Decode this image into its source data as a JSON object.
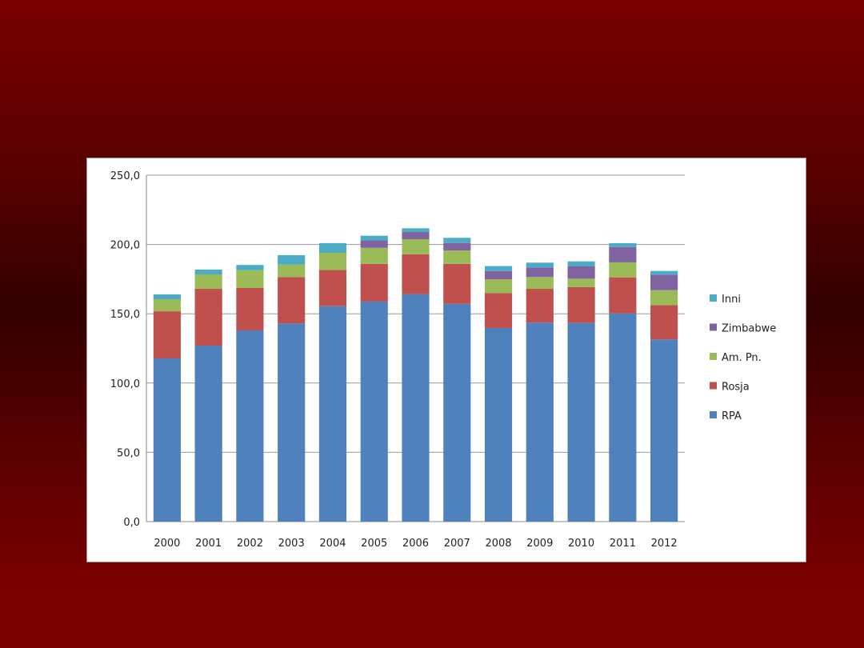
{
  "chart_data": {
    "type": "bar",
    "stacked": true,
    "title": "",
    "xlabel": "",
    "ylabel": "",
    "ylim": [
      0,
      250
    ],
    "yticks": [
      "0,0",
      "50,0",
      "100,0",
      "150,0",
      "200,0",
      "250,0"
    ],
    "ytick_values": [
      0,
      50,
      100,
      150,
      200,
      250
    ],
    "grid": true,
    "legend_position": "right",
    "categories": [
      "2000",
      "2001",
      "2002",
      "2003",
      "2004",
      "2005",
      "2006",
      "2007",
      "2008",
      "2009",
      "2010",
      "2011",
      "2012"
    ],
    "series": [
      {
        "name": "RPA",
        "color": "#4f81bd",
        "values": [
          117.8,
          127.0,
          138.0,
          143.0,
          155.5,
          158.8,
          164.2,
          157.2,
          139.7,
          143.6,
          143.4,
          150.3,
          131.5
        ]
      },
      {
        "name": "Rosja",
        "color": "#c0504d",
        "values": [
          34.0,
          41.0,
          30.6,
          33.5,
          26.2,
          27.2,
          28.8,
          28.8,
          25.3,
          24.4,
          25.9,
          26.0,
          24.8
        ]
      },
      {
        "name": "Am. Pn.",
        "color": "#9bbb59",
        "values": [
          8.7,
          10.4,
          12.9,
          9.0,
          12.3,
          11.6,
          10.8,
          9.7,
          9.8,
          8.5,
          6.0,
          10.8,
          10.7
        ]
      },
      {
        "name": "Zimbabwe",
        "color": "#8064a2",
        "values": [
          0,
          0,
          0,
          0,
          0,
          5.4,
          5.2,
          5.4,
          6.1,
          6.9,
          9.1,
          11.1,
          11.2
        ]
      },
      {
        "name": "Inni",
        "color": "#4bacc6",
        "values": [
          3.5,
          3.5,
          3.7,
          6.8,
          7.0,
          3.3,
          2.7,
          3.7,
          3.5,
          3.5,
          3.4,
          2.8,
          2.7
        ]
      }
    ]
  }
}
